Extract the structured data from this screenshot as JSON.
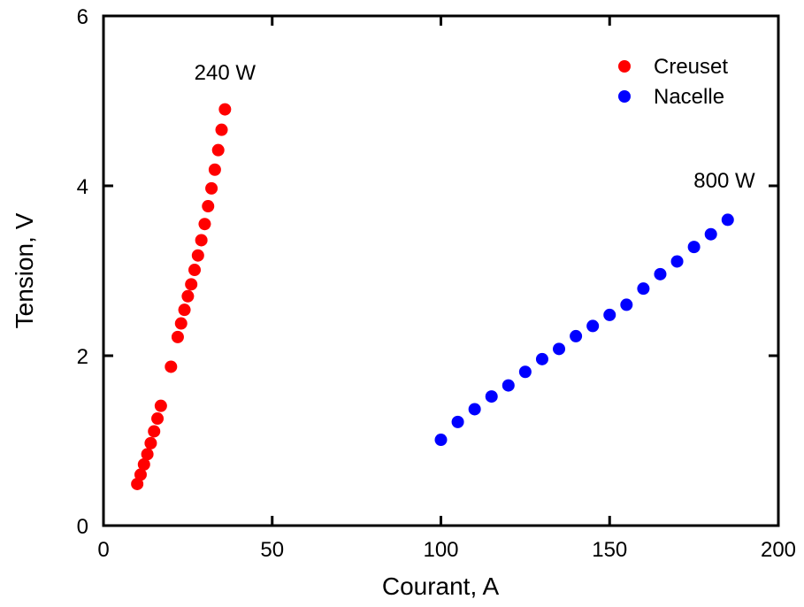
{
  "chart_data": {
    "type": "scatter",
    "xlabel": "Courant, A",
    "ylabel": "Tension, V",
    "xlim": [
      0,
      200
    ],
    "ylim": [
      0,
      6
    ],
    "x_ticks": [
      0,
      50,
      100,
      150,
      200
    ],
    "y_ticks": [
      0,
      2,
      4,
      6
    ],
    "x_tick_labels": [
      "0",
      "50",
      "100",
      "150",
      "200"
    ],
    "y_tick_labels": [
      "0",
      "2",
      "4",
      "6"
    ],
    "grid": false,
    "legend_position": "top-right",
    "series": [
      {
        "name": "Creuset",
        "color": "#ff0000",
        "points": [
          [
            10,
            0.49
          ],
          [
            11,
            0.6
          ],
          [
            12,
            0.72
          ],
          [
            13,
            0.84
          ],
          [
            14,
            0.97
          ],
          [
            15,
            1.11
          ],
          [
            16,
            1.26
          ],
          [
            17,
            1.41
          ],
          [
            20,
            1.87
          ],
          [
            22,
            2.22
          ],
          [
            23,
            2.38
          ],
          [
            24,
            2.54
          ],
          [
            25,
            2.7
          ],
          [
            26,
            2.84
          ],
          [
            27,
            3.01
          ],
          [
            28,
            3.18
          ],
          [
            29,
            3.36
          ],
          [
            30,
            3.55
          ],
          [
            31,
            3.76
          ],
          [
            32,
            3.97
          ],
          [
            33,
            4.19
          ],
          [
            34,
            4.42
          ],
          [
            35,
            4.66
          ],
          [
            36,
            4.9
          ]
        ]
      },
      {
        "name": "Nacelle",
        "color": "#0000ff",
        "points": [
          [
            100,
            1.01
          ],
          [
            105,
            1.22
          ],
          [
            110,
            1.37
          ],
          [
            115,
            1.52
          ],
          [
            120,
            1.65
          ],
          [
            125,
            1.81
          ],
          [
            130,
            1.96
          ],
          [
            135,
            2.08
          ],
          [
            140,
            2.23
          ],
          [
            145,
            2.35
          ],
          [
            150,
            2.48
          ],
          [
            155,
            2.6
          ],
          [
            160,
            2.79
          ],
          [
            165,
            2.96
          ],
          [
            170,
            3.11
          ],
          [
            175,
            3.28
          ],
          [
            180,
            3.43
          ],
          [
            185,
            3.6
          ]
        ]
      }
    ],
    "annotations": [
      {
        "text": "240 W",
        "x": 36,
        "y": 5.25
      },
      {
        "text": "800 W",
        "x": 184,
        "y": 3.98
      }
    ]
  }
}
